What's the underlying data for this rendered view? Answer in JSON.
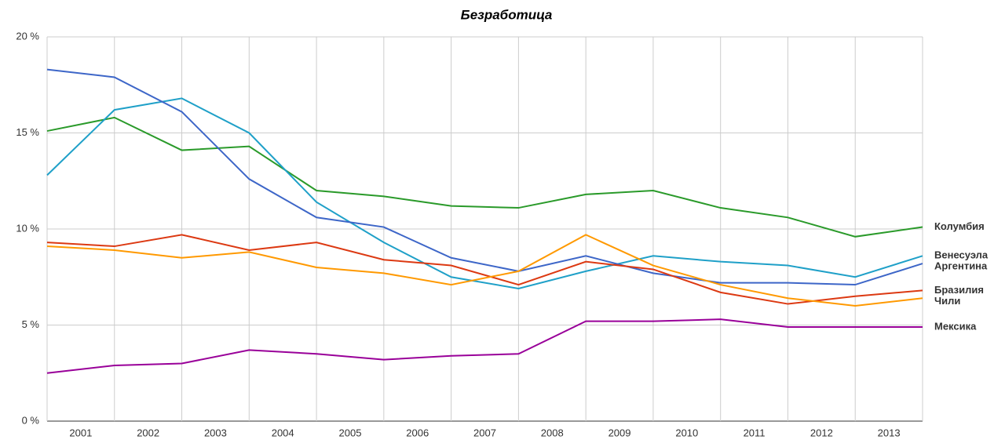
{
  "chart_data": {
    "type": "line",
    "title": "Безработица",
    "x": [
      2000.5,
      2001.5,
      2002.5,
      2003.5,
      2004.5,
      2005.5,
      2006.5,
      2007.5,
      2008.5,
      2009.5,
      2010.5,
      2011.5,
      2012.5,
      2013.5
    ],
    "xlim": [
      2000.5,
      2013.5
    ],
    "xticks": [
      2001,
      2002,
      2003,
      2004,
      2005,
      2006,
      2007,
      2008,
      2009,
      2010,
      2011,
      2012,
      2013
    ],
    "ylim": [
      0,
      20
    ],
    "yticks": [
      {
        "value": 0,
        "label": "0 %"
      },
      {
        "value": 5,
        "label": "5 %"
      },
      {
        "value": 10,
        "label": "10 %"
      },
      {
        "value": 15,
        "label": "15 %"
      },
      {
        "value": 20,
        "label": "20 %"
      }
    ],
    "grid": true,
    "series": [
      {
        "name": "Колумбия",
        "color": "#2a9a2a",
        "values": [
          15.1,
          15.8,
          14.1,
          14.3,
          12.0,
          11.7,
          11.2,
          11.1,
          11.8,
          12.0,
          11.1,
          10.6,
          9.6,
          10.1
        ]
      },
      {
        "name": "Венесуэла",
        "color": "#1fa0c8",
        "values": [
          12.8,
          16.2,
          16.8,
          15.0,
          11.4,
          9.3,
          7.5,
          6.9,
          7.8,
          8.6,
          8.3,
          8.1,
          7.5,
          8.6
        ]
      },
      {
        "name": "Аргентина",
        "color": "#3d66c8",
        "values": [
          18.3,
          17.9,
          16.1,
          12.6,
          10.6,
          10.1,
          8.5,
          7.8,
          8.6,
          7.7,
          7.2,
          7.2,
          7.1,
          8.2
        ]
      },
      {
        "name": "Бразилия",
        "color": "#dc3912",
        "values": [
          9.3,
          9.1,
          9.7,
          8.9,
          9.3,
          8.4,
          8.1,
          7.1,
          8.3,
          7.9,
          6.7,
          6.1,
          6.5,
          6.8
        ]
      },
      {
        "name": "Чили",
        "color": "#ff9900",
        "values": [
          9.1,
          8.9,
          8.5,
          8.8,
          8.0,
          7.7,
          7.1,
          7.8,
          9.7,
          8.1,
          7.1,
          6.4,
          6.0,
          6.4
        ]
      },
      {
        "name": "Мексика",
        "color": "#990099",
        "values": [
          2.5,
          2.9,
          3.0,
          3.7,
          3.5,
          3.2,
          3.4,
          3.5,
          5.2,
          5.2,
          5.3,
          4.9,
          4.9,
          4.9
        ]
      }
    ]
  }
}
